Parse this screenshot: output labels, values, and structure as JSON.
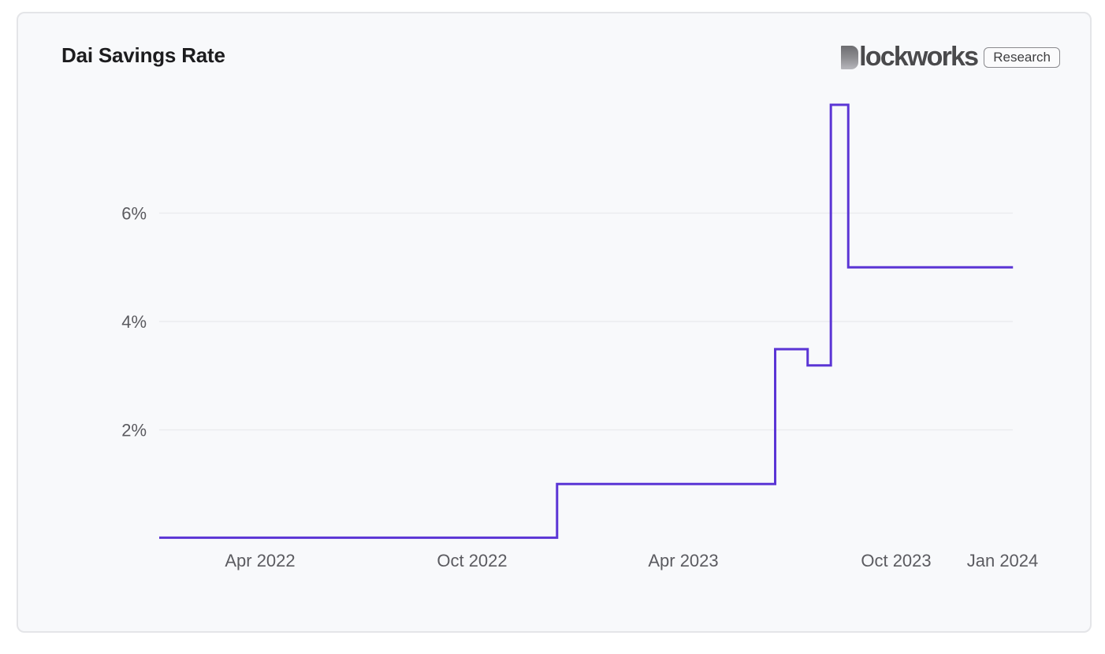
{
  "header": {
    "title": "Dai Savings Rate",
    "brand": "lockworks",
    "brand_full": "Blockworks",
    "badge": "Research"
  },
  "colors": {
    "line": "#5b35d5",
    "grid": "#ebecef",
    "background": "#f8f9fb",
    "text": "#5b5b60"
  },
  "chart_data": {
    "type": "line",
    "title": "Dai Savings Rate",
    "xlabel": "",
    "ylabel": "",
    "step": true,
    "ylim": [
      0,
      8
    ],
    "y_ticks": [
      "2%",
      "4%",
      "6%"
    ],
    "x_ticks": [
      "Apr 2022",
      "Oct 2022",
      "Apr 2023",
      "Oct 2023",
      "Jan 2024"
    ],
    "grid": "horizontal",
    "legend": "none",
    "series": [
      {
        "name": "Dai Savings Rate",
        "x": [
          "2022-01-04",
          "2022-12-13",
          "2023-06-19",
          "2023-07-17",
          "2023-08-06",
          "2023-08-21",
          "2024-01-10"
        ],
        "values": [
          0.01,
          1.0,
          3.49,
          3.19,
          8.0,
          5.0,
          5.0
        ]
      }
    ]
  }
}
